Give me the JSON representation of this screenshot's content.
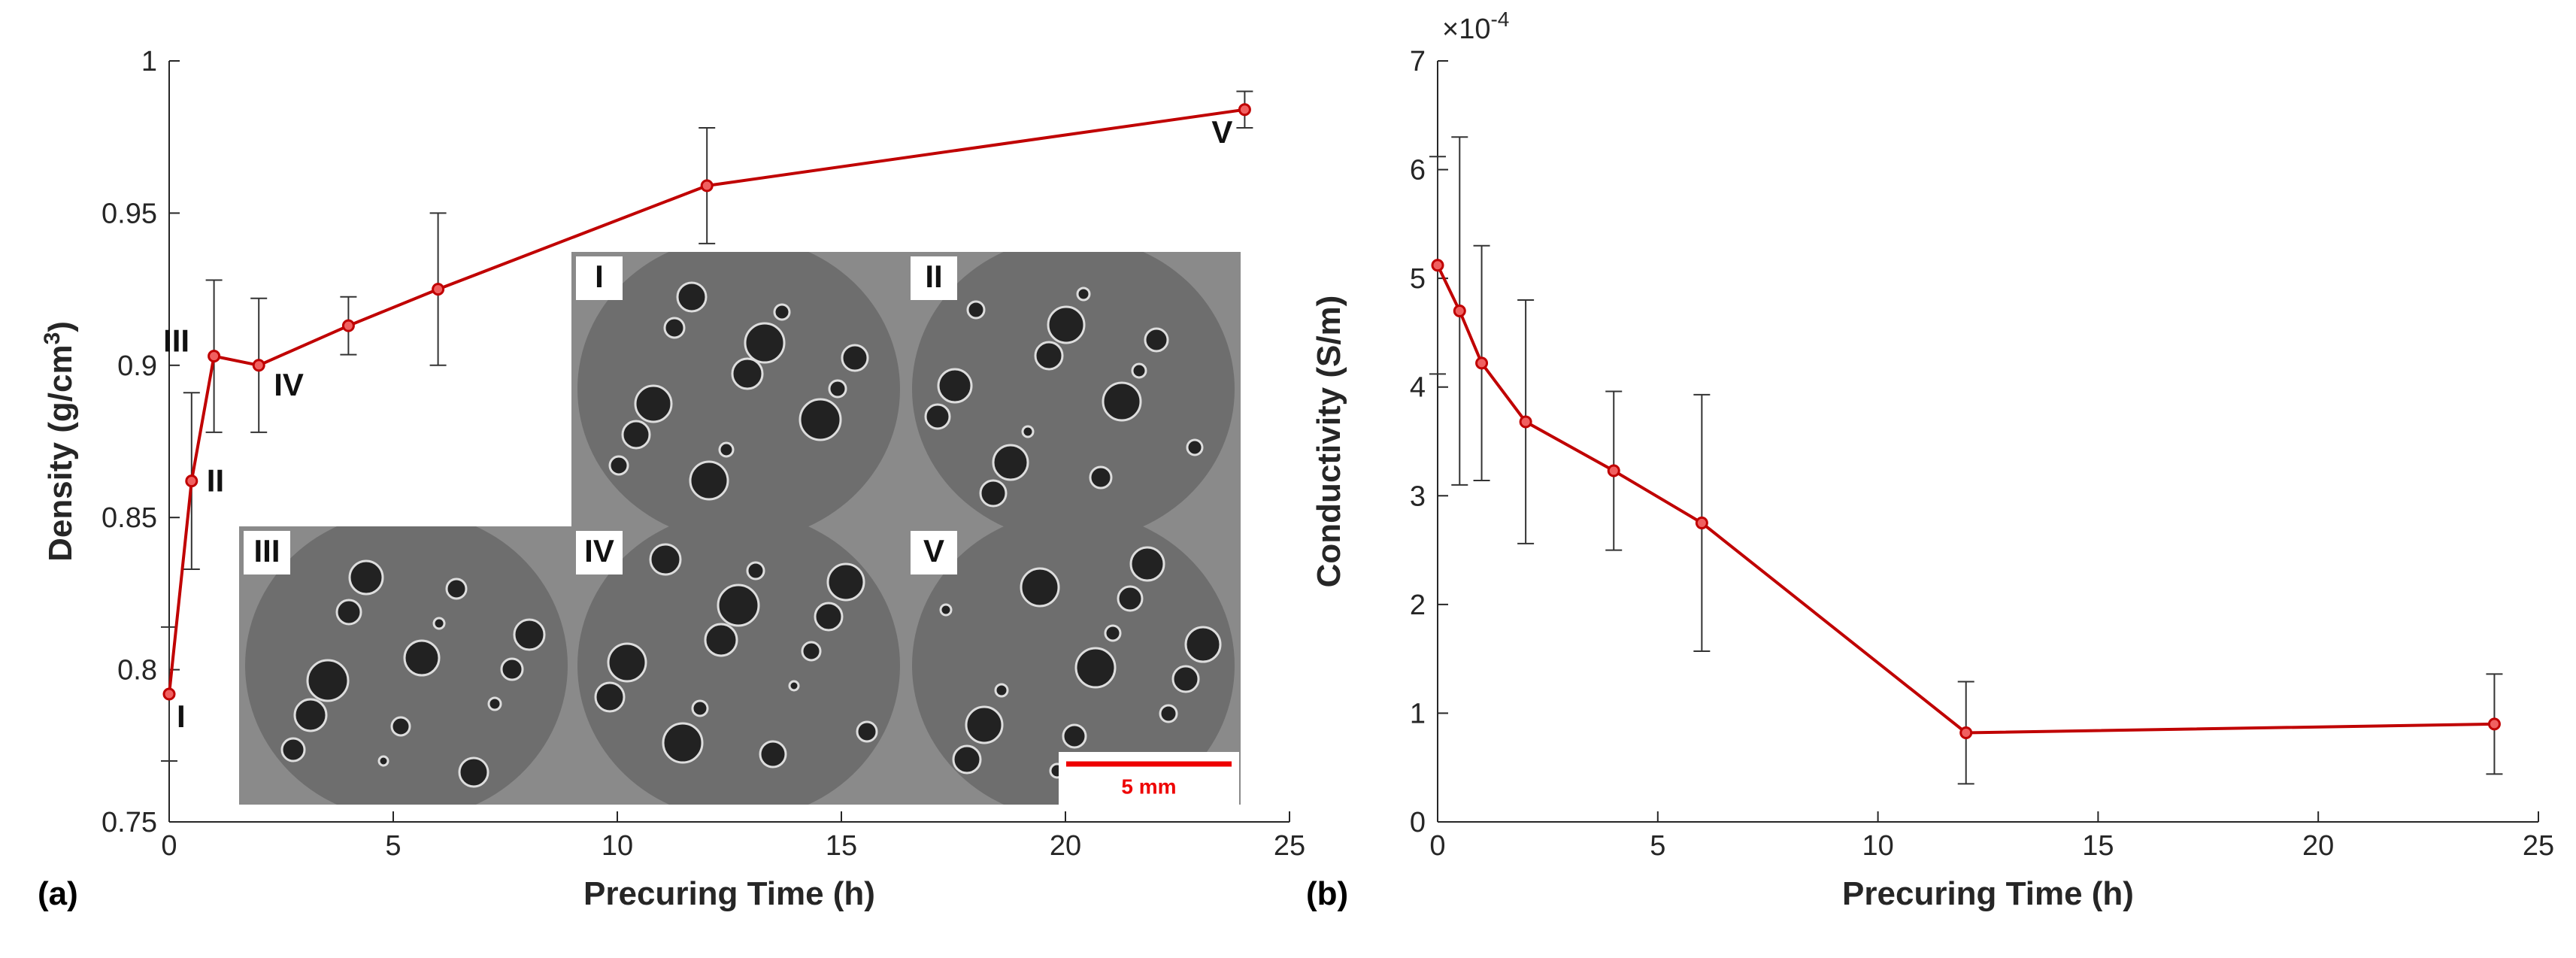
{
  "chart_data": [
    {
      "type": "line",
      "panel_label": "(a)",
      "xlabel": "Precuring Time (h)",
      "ylabel": "Density (g/cm",
      "ylabel_sup": "3",
      "ylabel_end": ")",
      "x": [
        0,
        0.5,
        1,
        2,
        4,
        6,
        12,
        24
      ],
      "series": [
        {
          "color": "#c00000",
          "values": [
            0.792,
            0.862,
            0.903,
            0.9,
            0.913,
            0.925,
            0.959,
            0.984
          ],
          "errors": [
            0.022,
            0.029,
            0.025,
            0.022,
            0.0095,
            0.025,
            0.019,
            0.006
          ],
          "point_labels": [
            "I",
            "II",
            "III",
            "IV",
            null,
            null,
            null,
            "V"
          ]
        }
      ],
      "inset_scale_bar": "5 mm",
      "xlim": [
        0,
        25
      ],
      "xticks": [
        0,
        5,
        10,
        15,
        20,
        25
      ],
      "ylim": [
        0.75,
        1
      ],
      "yticks": [
        0.75,
        0.8,
        0.85,
        0.9,
        0.95,
        1
      ]
    },
    {
      "type": "line",
      "panel_label": "(b)",
      "xlabel": "Precuring Time (h)",
      "ylabel": "Conductivity (S/m)",
      "y_multiplier": "×10",
      "y_multiplier_exponent": "-4",
      "x": [
        0,
        0.5,
        1,
        2,
        4,
        6,
        12,
        24
      ],
      "series": [
        {
          "color": "#c00000",
          "values": [
            5.12,
            4.7,
            4.22,
            3.68,
            3.23,
            2.75,
            0.82,
            0.9
          ],
          "errors": [
            1.0,
            1.6,
            1.08,
            1.12,
            0.73,
            1.18,
            0.47,
            0.46
          ]
        }
      ],
      "xlim": [
        0,
        25
      ],
      "xticks": [
        0,
        5,
        10,
        15,
        20,
        25
      ],
      "ylim": [
        0,
        7
      ],
      "yticks": [
        0,
        1,
        2,
        3,
        4,
        5,
        6,
        7
      ]
    }
  ]
}
